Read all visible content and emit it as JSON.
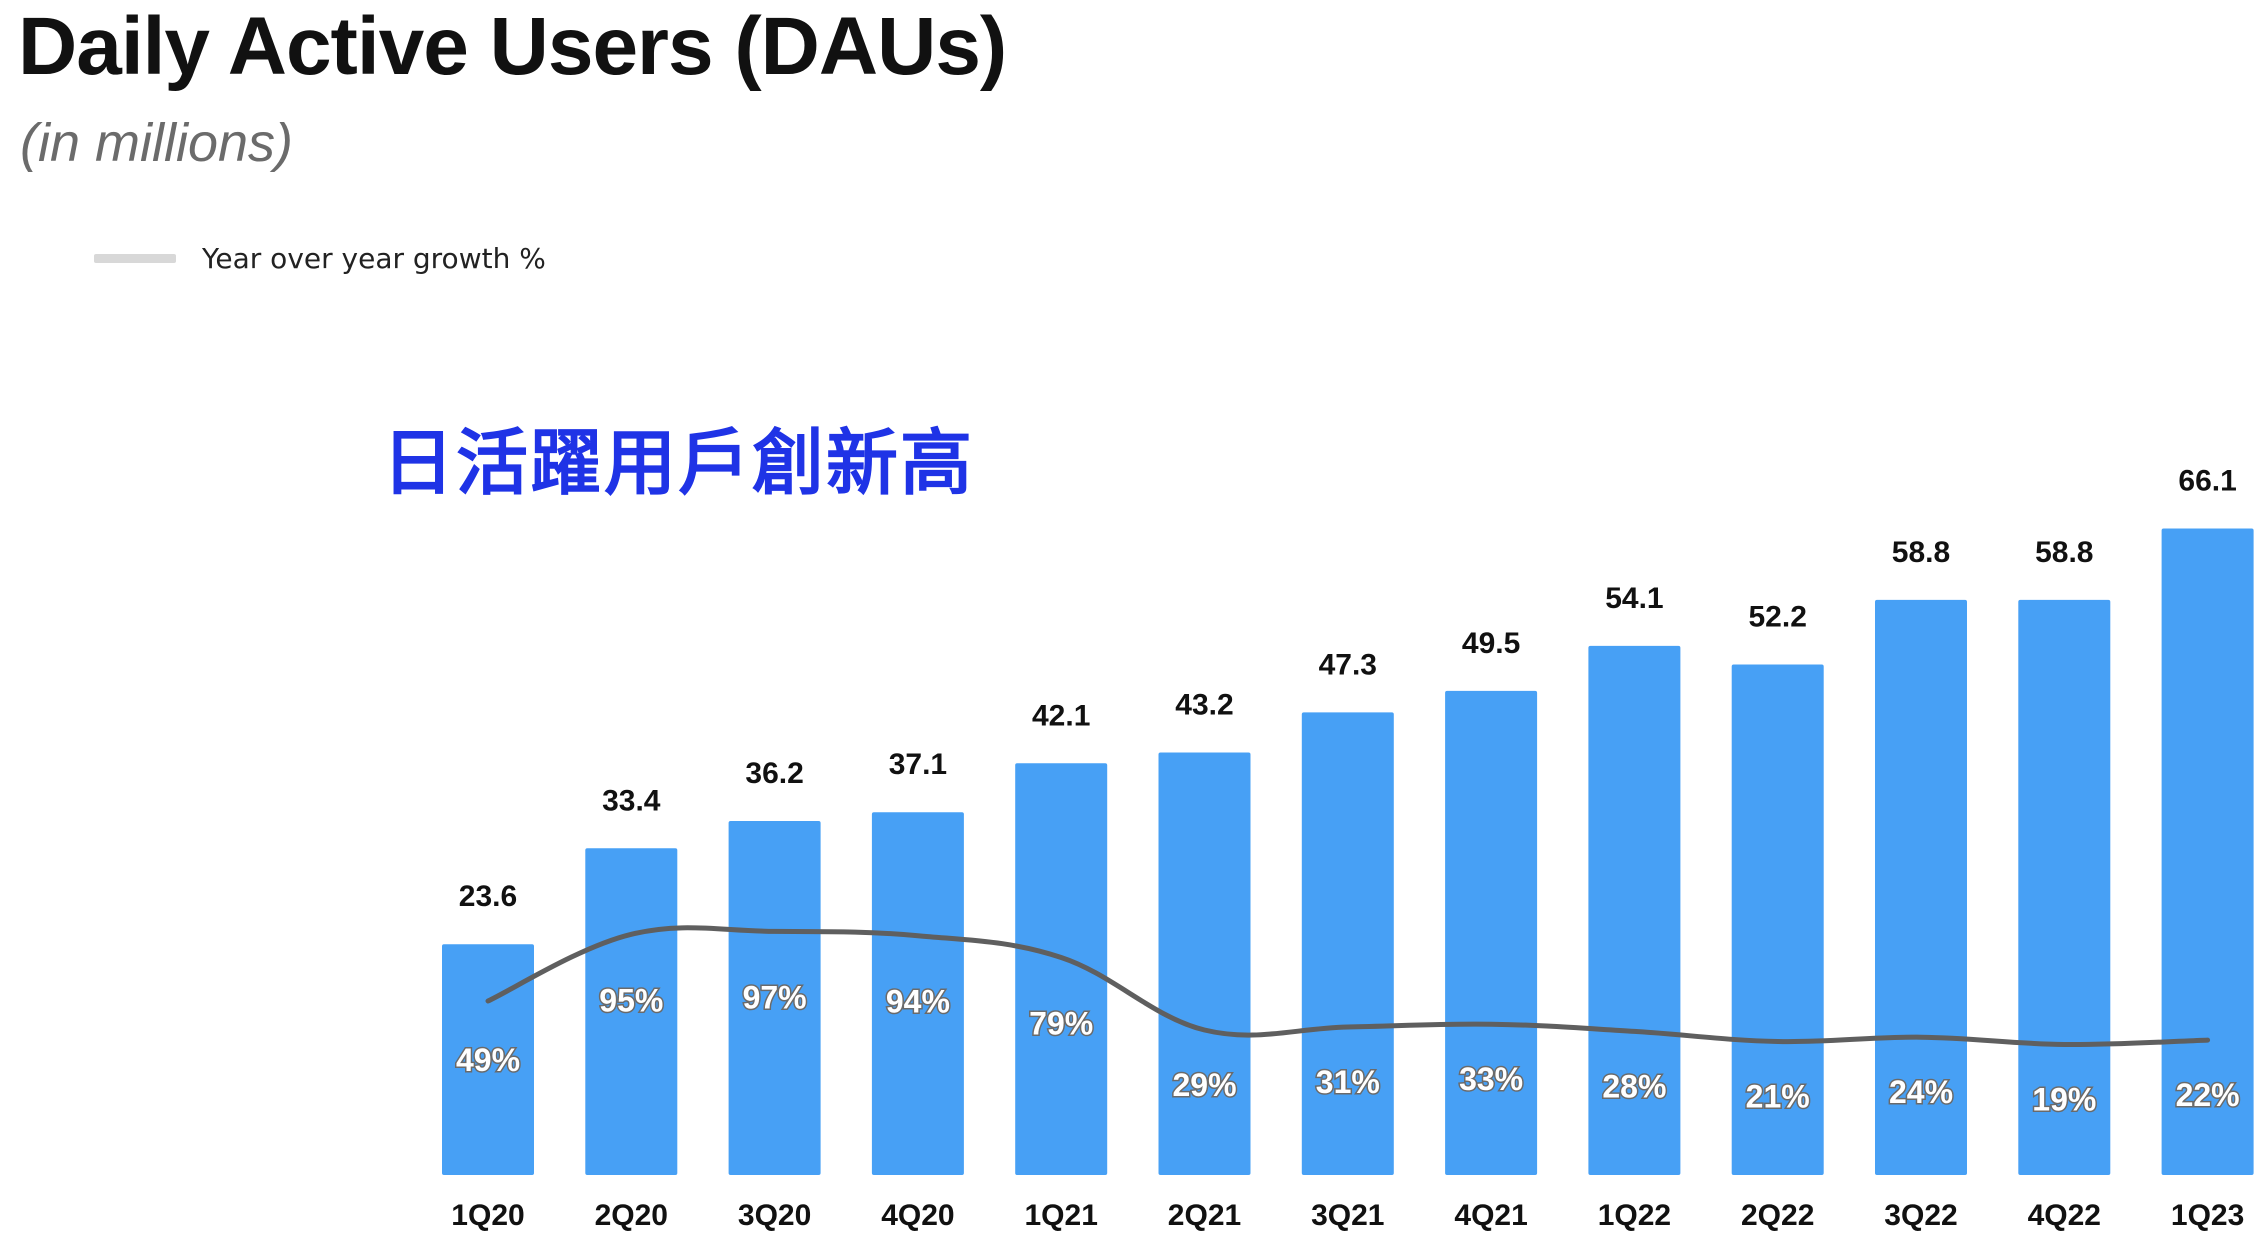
{
  "header": {
    "title": "Daily Active Users (DAUs)",
    "subtitle": "(in millions)"
  },
  "legend": {
    "label": "Year over year growth %",
    "swatch_color": "#d8d8d8"
  },
  "annotation": {
    "text": "日活躍用戶創新高",
    "color": "#1f33e6"
  },
  "colors": {
    "bar": "#47a0f5",
    "line": "#5f5f5f"
  },
  "chart_data": {
    "type": "bar",
    "categories": [
      "1Q20",
      "2Q20",
      "3Q20",
      "4Q20",
      "1Q21",
      "2Q21",
      "3Q21",
      "4Q21",
      "1Q22",
      "2Q22",
      "3Q22",
      "4Q22",
      "1Q23"
    ],
    "series": [
      {
        "type": "bar",
        "values": [
          23.6,
          33.4,
          36.2,
          37.1,
          42.1,
          43.2,
          47.3,
          49.5,
          54.1,
          52.2,
          58.8,
          58.8,
          66.1
        ],
        "labels": [
          "23.6",
          "33.4",
          "36.2",
          "37.1",
          "42.1",
          "43.2",
          "47.3",
          "49.5",
          "54.1",
          "52.2",
          "58.8",
          "58.8",
          "66.1"
        ]
      },
      {
        "name": "Year over year growth %",
        "type": "line",
        "values": [
          49,
          95,
          97,
          94,
          79,
          29,
          31,
          33,
          28,
          21,
          24,
          19,
          22
        ],
        "labels": [
          "49%",
          "95%",
          "97%",
          "94%",
          "79%",
          "29%",
          "31%",
          "33%",
          "28%",
          "21%",
          "24%",
          "19%",
          "22%"
        ]
      }
    ],
    "title": "Daily Active Users (DAUs)",
    "subtitle": "(in millions)",
    "legend": "top-left",
    "grid": false
  }
}
